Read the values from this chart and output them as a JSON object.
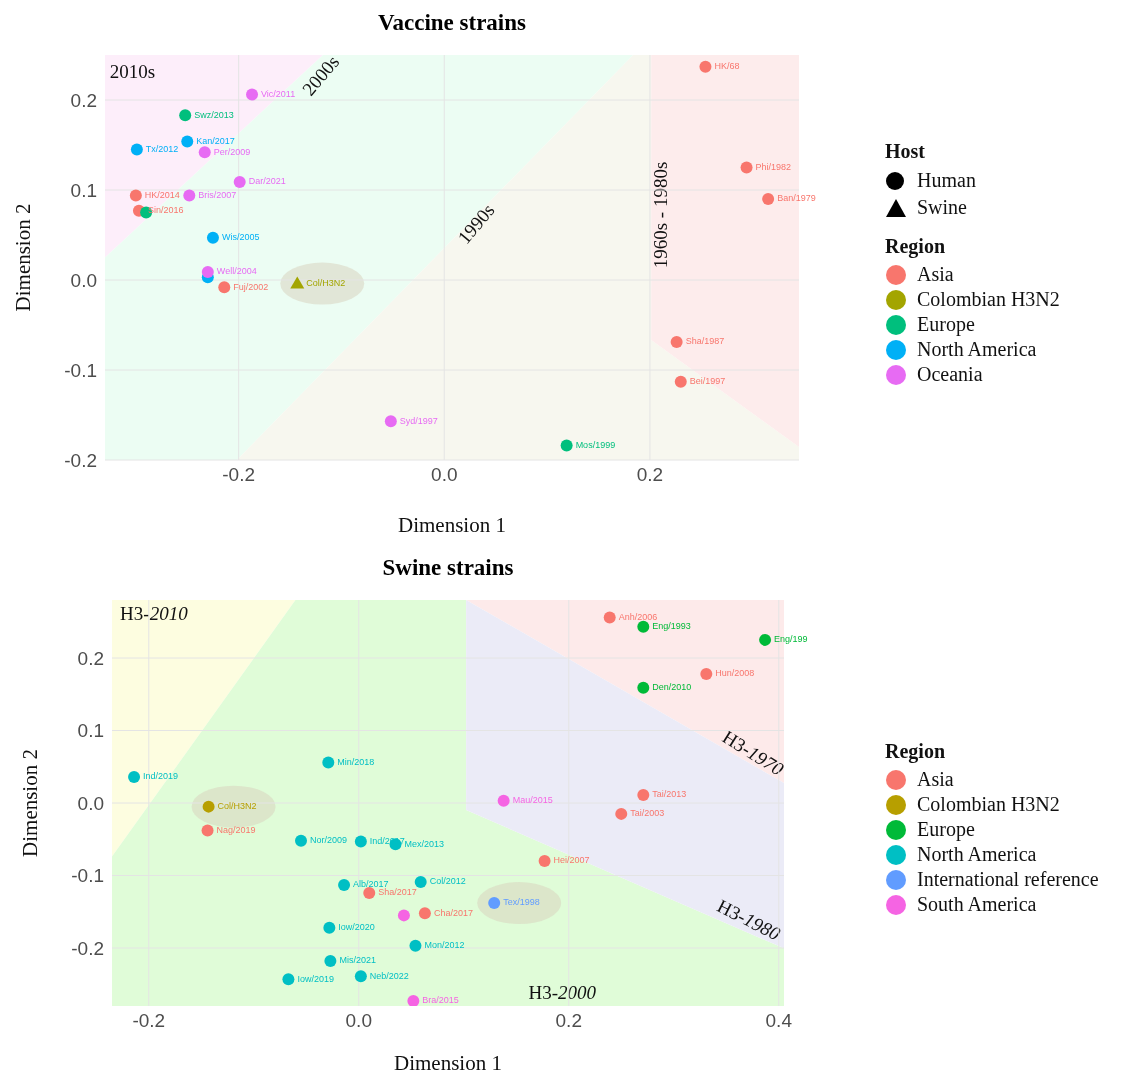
{
  "chart_data": [
    {
      "type": "scatter",
      "title": "Vaccine strains",
      "xlabel": "Dimension 1",
      "ylabel": "Dimension 2",
      "legend_title": "Region",
      "legend": "right",
      "grid": true,
      "marker": "circle",
      "xlim": [
        -0.33,
        0.345
      ],
      "xticks": [
        -0.2,
        {
          "value": 0,
          "label": "0.0"
        },
        0.2
      ],
      "ylim": [
        -0.2,
        0.25
      ],
      "yticks": [
        -0.2,
        -0.1,
        {
          "value": 0,
          "label": "0.0"
        },
        0.1,
        0.2
      ],
      "annotations": [
        "2010s",
        "2000s",
        "1990s",
        "1960s - 1980s",
        "Host",
        "Human",
        "Swine",
        {
          "text": "HK/2014",
          "x": -0.3,
          "y": 0.094
        },
        {
          "text": "Sin/2016",
          "x": -0.297,
          "y": 0.077
        },
        {
          "text": "Fuj/2002",
          "x": -0.214,
          "y": -0.008
        },
        {
          "text": "HK/68",
          "x": 0.254,
          "y": 0.237
        },
        {
          "text": "Phi/1982",
          "x": 0.294,
          "y": 0.125
        },
        {
          "text": "Ban/1979",
          "x": 0.315,
          "y": 0.09
        },
        {
          "text": "Sha/1987",
          "x": 0.226,
          "y": -0.069
        },
        {
          "text": "Bei/1997",
          "x": 0.23,
          "y": -0.113
        },
        {
          "text": "Col/H3N2",
          "x": -0.143,
          "y": -0.004
        },
        {
          "text": "Swz/2013",
          "x": -0.252,
          "y": 0.183
        },
        {
          "text": "Mos/1999",
          "x": 0.119,
          "y": -0.184
        },
        {
          "text": "Kan/2017",
          "x": -0.25,
          "y": 0.154
        },
        {
          "text": "Tx/2012",
          "x": -0.299,
          "y": 0.145
        },
        {
          "text": "Wis/2005",
          "x": -0.225,
          "y": 0.047
        },
        {
          "text": "Vic/2011",
          "x": -0.187,
          "y": 0.206
        },
        {
          "text": "Per/2009",
          "x": -0.233,
          "y": 0.142
        },
        {
          "text": "Dar/2021",
          "x": -0.199,
          "y": 0.109
        },
        {
          "text": "Bris/2007",
          "x": -0.248,
          "y": 0.094
        },
        {
          "text": "Well/2004",
          "x": -0.23,
          "y": 0.009
        },
        {
          "text": "Syd/1997",
          "x": -0.052,
          "y": -0.157
        }
      ],
      "series": [
        {
          "name": "Asia",
          "color": "#f8766d",
          "x": [
            -0.3,
            -0.297,
            -0.214,
            0.254,
            0.294,
            0.315,
            0.226,
            0.23
          ],
          "values": [
            0.094,
            0.077,
            -0.008,
            0.237,
            0.125,
            0.09,
            -0.069,
            -0.113
          ]
        },
        {
          "name": "Colombian H3N2",
          "color": "#a3a500",
          "marker": "triangle",
          "x": [
            -0.143
          ],
          "values": [
            -0.004
          ]
        },
        {
          "name": "Europe",
          "color": "#00bf7d",
          "x": [
            -0.252,
            -0.29,
            0.119
          ],
          "values": [
            0.183,
            0.075,
            -0.184
          ]
        },
        {
          "name": "North America",
          "color": "#00b0f6",
          "x": [
            -0.25,
            -0.299,
            -0.225,
            -0.23
          ],
          "values": [
            0.154,
            0.145,
            0.047,
            0.003
          ]
        },
        {
          "name": "Oceania",
          "color": "#e76bf3",
          "x": [
            -0.187,
            -0.233,
            -0.199,
            -0.248,
            -0.23,
            -0.052
          ],
          "values": [
            0.206,
            0.142,
            0.109,
            0.094,
            0.009,
            -0.157
          ]
        }
      ]
    },
    {
      "type": "scatter",
      "title": "Swine strains",
      "xlabel": "Dimension 1",
      "ylabel": "Dimension 2",
      "legend_title": "Region",
      "legend": "right",
      "grid": true,
      "marker": "circle",
      "xlim": [
        -0.235,
        0.405
      ],
      "xticks": [
        -0.2,
        {
          "value": 0,
          "label": "0.0"
        },
        0.2,
        0.4
      ],
      "ylim": [
        -0.28,
        0.28
      ],
      "yticks": [
        -0.2,
        -0.1,
        {
          "value": 0,
          "label": "0.0"
        },
        0.1,
        0.2
      ],
      "annotations": [
        "H3-2010",
        "H3-1970",
        "H3-1980",
        "H3-2000",
        {
          "text": "Nag/2019",
          "x": -0.144,
          "y": -0.038
        },
        {
          "text": "Sha/2017",
          "x": 0.01,
          "y": -0.124
        },
        {
          "text": "Cha/2017",
          "x": 0.063,
          "y": -0.152
        },
        {
          "text": "Anh/2006",
          "x": 0.239,
          "y": 0.256
        },
        {
          "text": "Hun/2008",
          "x": 0.331,
          "y": 0.178
        },
        {
          "text": "Tai/2013",
          "x": 0.271,
          "y": 0.011
        },
        {
          "text": "Tai/2003",
          "x": 0.25,
          "y": -0.015
        },
        {
          "text": "Hei/2007",
          "x": 0.177,
          "y": -0.08
        },
        {
          "text": "Col/H3N2",
          "x": -0.143,
          "y": -0.005
        },
        {
          "text": "Eng/1993",
          "x": 0.271,
          "y": 0.243
        },
        {
          "text": "Eng/199",
          "x": 0.387,
          "y": 0.225
        },
        {
          "text": "Den/2010",
          "x": 0.271,
          "y": 0.159
        },
        {
          "text": "Ind/2019",
          "x": -0.214,
          "y": 0.036
        },
        {
          "text": "Min/2018",
          "x": -0.029,
          "y": 0.056
        },
        {
          "text": "Nor/2009",
          "x": -0.055,
          "y": -0.052
        },
        {
          "text": "Ind/2017",
          "x": 0.002,
          "y": -0.053
        },
        {
          "text": "Mex/2013",
          "x": 0.035,
          "y": -0.057
        },
        {
          "text": "Alb/2017",
          "x": -0.014,
          "y": -0.113
        },
        {
          "text": "Col/2012",
          "x": 0.059,
          "y": -0.109
        },
        {
          "text": "Iow/2020",
          "x": -0.028,
          "y": -0.172
        },
        {
          "text": "Mon/2012",
          "x": 0.054,
          "y": -0.197
        },
        {
          "text": "Mis/2021",
          "x": -0.027,
          "y": -0.218
        },
        {
          "text": "Iow/2019",
          "x": -0.067,
          "y": -0.243
        },
        {
          "text": "Neb/2022",
          "x": 0.002,
          "y": -0.239
        },
        {
          "text": "Tex/1998",
          "x": 0.129,
          "y": -0.138
        },
        {
          "text": "Bra/2015",
          "x": 0.052,
          "y": -0.273
        },
        {
          "text": "Mau/2015",
          "x": 0.138,
          "y": 0.003
        }
      ],
      "series": [
        {
          "name": "Asia",
          "color": "#f8766d",
          "x": [
            -0.144,
            0.01,
            0.063,
            0.239,
            0.331,
            0.271,
            0.25,
            0.177
          ],
          "values": [
            -0.038,
            -0.124,
            -0.152,
            0.256,
            0.178,
            0.011,
            -0.015,
            -0.08
          ]
        },
        {
          "name": "Colombian H3N2",
          "color": "#b79f00",
          "x": [
            -0.143
          ],
          "values": [
            -0.005
          ]
        },
        {
          "name": "Europe",
          "color": "#00ba38",
          "x": [
            0.271,
            0.387,
            0.271
          ],
          "values": [
            0.243,
            0.225,
            0.159
          ]
        },
        {
          "name": "North America",
          "color": "#00bfc4",
          "x": [
            -0.214,
            -0.029,
            -0.055,
            0.002,
            0.035,
            -0.014,
            0.059,
            -0.028,
            0.054,
            -0.027,
            -0.067,
            0.002
          ],
          "values": [
            0.036,
            0.056,
            -0.052,
            -0.053,
            -0.057,
            -0.113,
            -0.109,
            -0.172,
            -0.197,
            -0.218,
            -0.243,
            -0.239
          ]
        },
        {
          "name": "International reference",
          "color": "#619cff",
          "x": [
            0.129
          ],
          "values": [
            -0.138
          ]
        },
        {
          "name": "South America",
          "color": "#f564e3",
          "x": [
            0.043,
            0.052,
            0.138
          ],
          "values": [
            -0.155,
            -0.273,
            0.003
          ]
        }
      ]
    }
  ]
}
